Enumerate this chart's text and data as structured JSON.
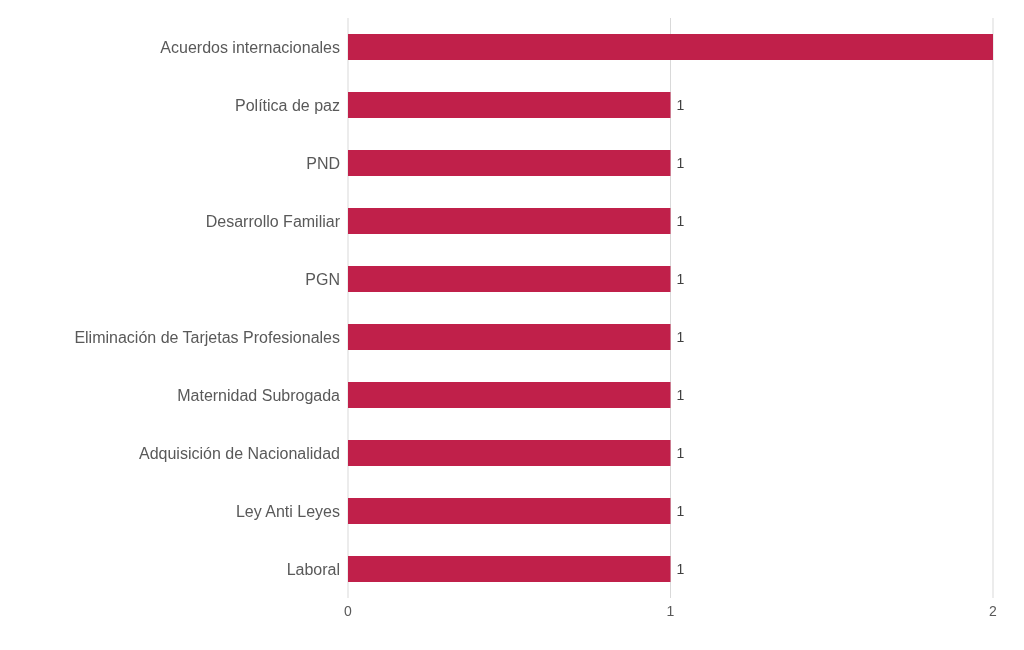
{
  "chart_data": {
    "type": "bar",
    "orientation": "horizontal",
    "categories": [
      "Acuerdos internacionales",
      "Política de paz",
      "PND",
      "Desarrollo Familiar",
      "PGN",
      "Eliminación de Tarjetas Profesionales",
      "Maternidad Subrogada",
      "Adquisición de Nacionalidad",
      "Ley Anti Leyes",
      "Laboral"
    ],
    "values": [
      2,
      1,
      1,
      1,
      1,
      1,
      1,
      1,
      1,
      1
    ],
    "value_labels": [
      null,
      "1",
      "1",
      "1",
      "1",
      "1",
      "1",
      "1",
      "1",
      "1"
    ],
    "color": "#c0204a",
    "xlim": [
      0,
      2
    ],
    "xticks": [
      0,
      1,
      2
    ],
    "grid": "x"
  }
}
